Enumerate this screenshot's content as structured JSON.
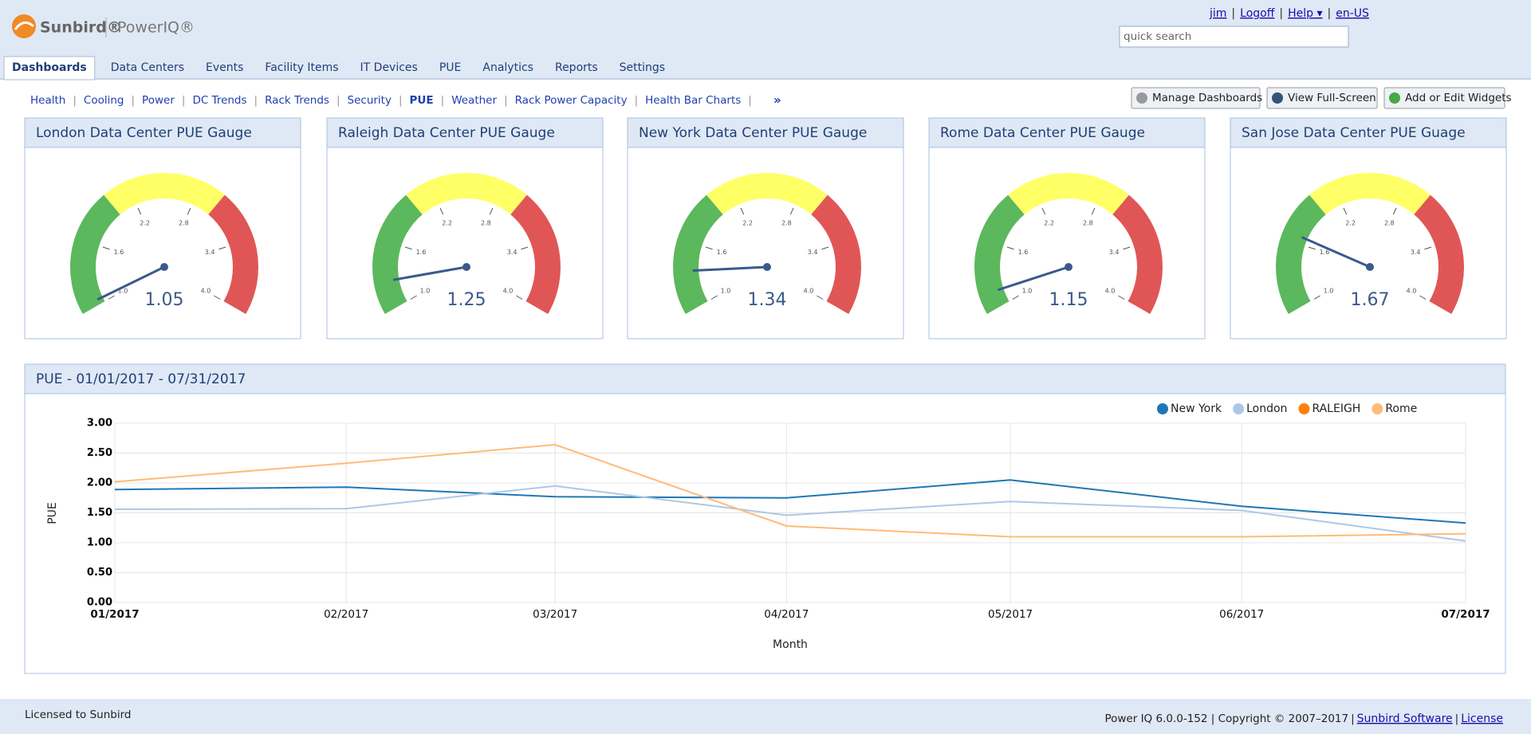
{
  "header": {
    "logo": "Sunbird®",
    "product": "PowerIQ®",
    "links": [
      "jim",
      "Logoff",
      "Help ▾",
      "en-US"
    ],
    "search_placeholder": "quick search"
  },
  "nav_tabs": [
    "Dashboards",
    "Data Centers",
    "Events",
    "Facility Items",
    "IT Devices",
    "PUE",
    "Analytics",
    "Reports",
    "Settings"
  ],
  "sub_tabs": [
    "Health",
    "Cooling",
    "Power",
    "DC Trends",
    "Rack Trends",
    "Security",
    "PUE",
    "Weather",
    "Rack Power Capacity",
    "Health Bar Charts"
  ],
  "more": "»",
  "buttons": [
    "Manage Dashboards",
    "View Full-Screen",
    "Add or Edit Widgets"
  ],
  "gauge_scale": {
    "lim": [
      1.0,
      4.0
    ],
    "ticks": [
      {
        "value": 1.0,
        "label": "1.0"
      },
      1.6,
      2.2,
      2.8,
      3.4,
      {
        "value": 4.0,
        "label": "4.0"
      }
    ],
    "bands": [
      {
        "from": 1.0,
        "to": 2.0,
        "color": "#5cb85c"
      },
      {
        "from": 2.0,
        "to": 3.0,
        "color": "#ffff66"
      },
      {
        "from": 3.0,
        "to": 4.0,
        "color": "#e05656"
      }
    ]
  },
  "gauges": [
    {
      "title": "London Data Center PUE Gauge",
      "value": 1.05
    },
    {
      "title": "Raleigh Data Center PUE Gauge",
      "value": 1.25
    },
    {
      "title": "New York Data Center PUE Gauge",
      "value": 1.34
    },
    {
      "title": "Rome Data Center PUE Gauge",
      "value": 1.15
    },
    {
      "title": "San Jose Data Center PUE Guage",
      "value": 1.67
    }
  ],
  "chart_data": {
    "type": "line",
    "title": "PUE - 01/01/2017 - 07/31/2017",
    "x_label": "Month",
    "y_label": "PUE",
    "categories": [
      "01/2017",
      "02/2017",
      "03/2017",
      "04/2017",
      "05/2017",
      "06/2017",
      "07/2017"
    ],
    "ylim": [
      0,
      3
    ],
    "yticks": [
      {
        "value": 0,
        "label": "0.00"
      },
      {
        "value": 0.5,
        "label": "0.50"
      },
      {
        "value": 1,
        "label": "1.00"
      },
      {
        "value": 1.5,
        "label": "1.50"
      },
      {
        "value": 2,
        "label": "2.00"
      },
      {
        "value": 2.5,
        "label": "2.50"
      },
      {
        "value": 3,
        "label": "3.00"
      }
    ],
    "grid": true,
    "legend": "top-right",
    "series": [
      {
        "name": "New York",
        "color": "#1f77b4",
        "values": [
          1.89,
          1.93,
          1.77,
          1.75,
          2.05,
          1.61,
          1.33
        ]
      },
      {
        "name": "London",
        "color": "#aec7e8",
        "values": [
          1.56,
          1.57,
          1.95,
          1.46,
          1.69,
          1.54,
          1.03
        ]
      },
      {
        "name": "RALEIGH",
        "color": "#ff7f0e",
        "values": [
          null,
          null,
          null,
          null,
          null,
          null,
          null
        ]
      },
      {
        "name": "Rome",
        "color": "#ffbb78",
        "values": [
          2.02,
          2.33,
          2.64,
          1.28,
          1.1,
          1.1,
          1.15
        ]
      }
    ]
  },
  "footer": {
    "left": "Licensed to Sunbird",
    "right": "Power IQ 6.0.0-152 | Copyright © 2007–2017",
    "link": "Sunbird Software",
    "license": "License"
  }
}
